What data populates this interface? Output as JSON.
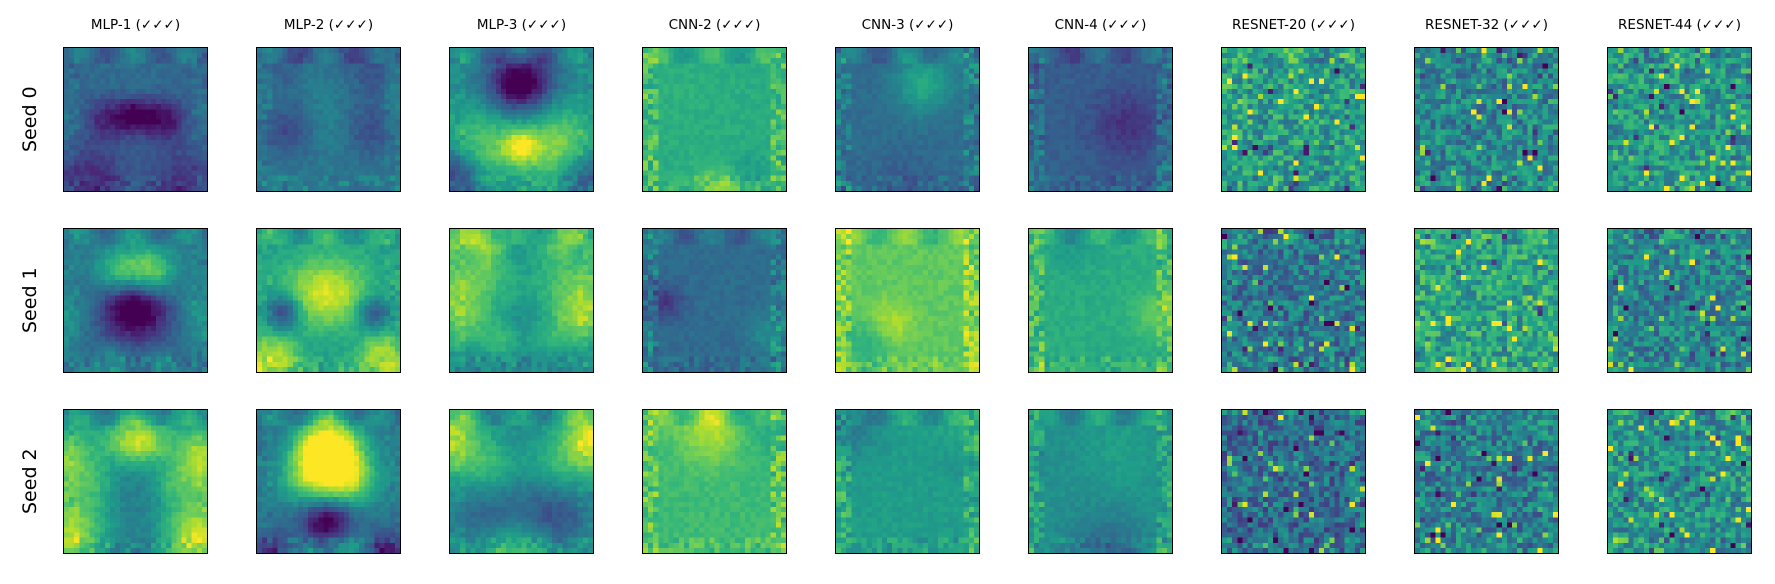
{
  "chart_data": {
    "type": "heatmap",
    "colormap": "viridis",
    "grid": false,
    "columns": [
      "MLP-1 (✓✓✓)",
      "MLP-2 (✓✓✓)",
      "MLP-3 (✓✓✓)",
      "CNN-2 (✓✓✓)",
      "CNN-3 (✓✓✓)",
      "CNN-4 (✓✓✓)",
      "RESNET-20 (✓✓✓)",
      "RESNET-32 (✓✓✓)",
      "RESNET-44 (✓✓✓)"
    ],
    "rows": [
      "Seed 0",
      "Seed 1",
      "Seed 2"
    ],
    "image_resolution": 28,
    "panels": [
      [
        {
          "style": "mlp",
          "level": 0.38
        },
        {
          "style": "mlp",
          "level": 0.4
        },
        {
          "style": "mlp",
          "level": 0.45
        },
        {
          "style": "cnn",
          "level": 0.62
        },
        {
          "style": "cnn",
          "level": 0.35
        },
        {
          "style": "cnn",
          "level": 0.3
        },
        {
          "style": "resnet",
          "level": 0.55
        },
        {
          "style": "resnet",
          "level": 0.45
        },
        {
          "style": "resnet",
          "level": 0.52
        }
      ],
      [
        {
          "style": "mlp",
          "level": 0.4
        },
        {
          "style": "mlp",
          "level": 0.55
        },
        {
          "style": "mlp",
          "level": 0.42
        },
        {
          "style": "cnn",
          "level": 0.35
        },
        {
          "style": "cnn",
          "level": 0.75
        },
        {
          "style": "cnn",
          "level": 0.62
        },
        {
          "style": "resnet",
          "level": 0.4
        },
        {
          "style": "resnet",
          "level": 0.58
        },
        {
          "style": "resnet",
          "level": 0.45
        }
      ],
      [
        {
          "style": "mlp",
          "level": 0.4
        },
        {
          "style": "mlp",
          "level": 0.38
        },
        {
          "style": "mlp",
          "level": 0.48
        },
        {
          "style": "cnn",
          "level": 0.68
        },
        {
          "style": "cnn",
          "level": 0.55
        },
        {
          "style": "cnn",
          "level": 0.5
        },
        {
          "style": "resnet",
          "level": 0.35
        },
        {
          "style": "resnet",
          "level": 0.42
        },
        {
          "style": "resnet",
          "level": 0.5
        }
      ]
    ]
  }
}
